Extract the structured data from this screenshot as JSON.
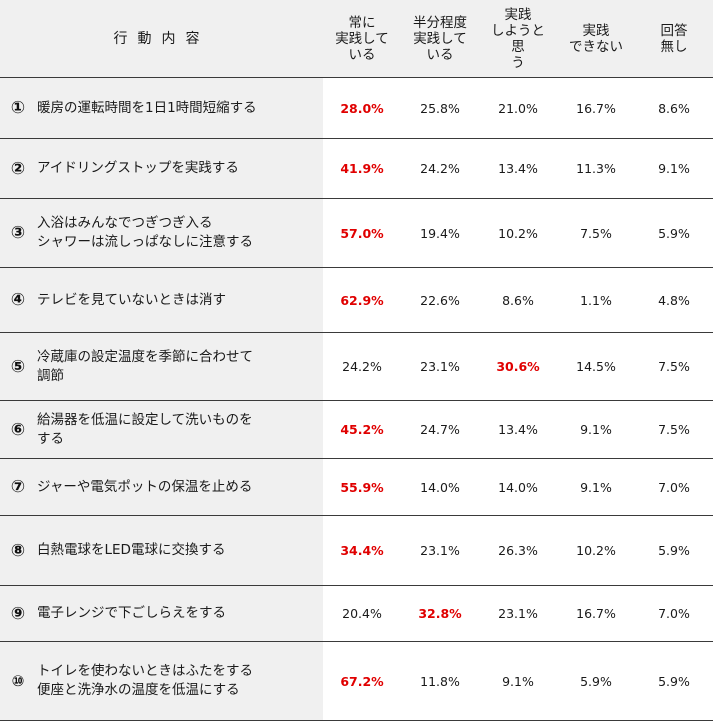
{
  "header": {
    "action": "行動内容",
    "columns": [
      [
        "常に",
        "実践して",
        "いる"
      ],
      [
        "半分程度",
        "実践して",
        "いる"
      ],
      [
        "実践",
        "しようと思",
        "う"
      ],
      [
        "実践",
        "できない"
      ],
      [
        "回答",
        "無し"
      ]
    ]
  },
  "rows": [
    {
      "num": "①",
      "lines": [
        "暖房の運転時間を1日1時間短縮する"
      ],
      "values": [
        "28.0%",
        "25.8%",
        "21.0%",
        "16.7%",
        "8.6%"
      ],
      "highlight": 0
    },
    {
      "num": "②",
      "lines": [
        "アイドリングストップを実践する"
      ],
      "values": [
        "41.9%",
        "24.2%",
        "13.4%",
        "11.3%",
        "9.1%"
      ],
      "highlight": 0
    },
    {
      "num": "③",
      "lines": [
        "入浴はみんなでつぎつぎ入る",
        "シャワーは流しっぱなしに注意する"
      ],
      "values": [
        "57.0%",
        "19.4%",
        "10.2%",
        "7.5%",
        "5.9%"
      ],
      "highlight": 0
    },
    {
      "num": "④",
      "lines": [
        "テレビを見ていないときは消す"
      ],
      "values": [
        "62.9%",
        "22.6%",
        "8.6%",
        "1.1%",
        "4.8%"
      ],
      "highlight": 0
    },
    {
      "num": "⑤",
      "lines": [
        "冷蔵庫の設定温度を季節に合わせて",
        "調節"
      ],
      "values": [
        "24.2%",
        "23.1%",
        "30.6%",
        "14.5%",
        "7.5%"
      ],
      "highlight": 2
    },
    {
      "num": "⑥",
      "lines": [
        "給湯器を低温に設定して洗いものを",
        "する"
      ],
      "values": [
        "45.2%",
        "24.7%",
        "13.4%",
        "9.1%",
        "7.5%"
      ],
      "highlight": 0
    },
    {
      "num": "⑦",
      "lines": [
        "ジャーや電気ポットの保温を止める"
      ],
      "values": [
        "55.9%",
        "14.0%",
        "14.0%",
        "9.1%",
        "7.0%"
      ],
      "highlight": 0
    },
    {
      "num": "⑧",
      "lines": [
        "白熱電球をLED電球に交換する"
      ],
      "values": [
        "34.4%",
        "23.1%",
        "26.3%",
        "10.2%",
        "5.9%"
      ],
      "highlight": 0
    },
    {
      "num": "⑨",
      "lines": [
        "電子レンジで下ごしらえをする"
      ],
      "values": [
        "20.4%",
        "32.8%",
        "23.1%",
        "16.7%",
        "7.0%"
      ],
      "highlight": 1
    },
    {
      "num": "⑩",
      "lines": [
        "トイレを使わないときはふたをする",
        "便座と洗浄水の温度を低温にする"
      ],
      "values": [
        "67.2%",
        "11.8%",
        "9.1%",
        "5.9%",
        "5.9%"
      ],
      "highlight": 0
    }
  ],
  "colors": {
    "highlight": "#e00000",
    "shade": "#f0f0f0",
    "rule": "#3a3a3a"
  }
}
